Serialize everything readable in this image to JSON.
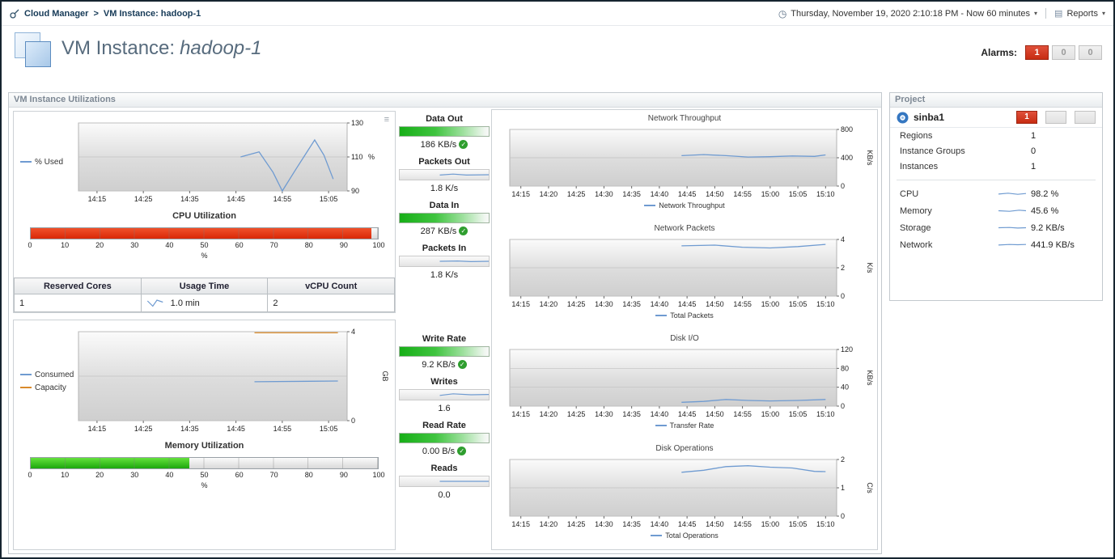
{
  "topbar": {
    "breadcrumb_root": "Cloud Manager",
    "breadcrumb_sep": ">",
    "breadcrumb_current": "VM Instance: hadoop-1",
    "time_label": "Thursday, November 19, 2020 2:10:18 PM - Now 60 minutes",
    "reports_label": "Reports"
  },
  "icons": {
    "clock": "◷",
    "caret": "▾",
    "reports": "▤",
    "menu": "≡",
    "check": "✓"
  },
  "header": {
    "title_prefix": "VM Instance:",
    "instance_name": "hadoop-1",
    "alarms_label": "Alarms:",
    "alarms": [
      "1",
      "0",
      "0"
    ]
  },
  "main_panel": {
    "title": "VM Instance Utilizations"
  },
  "cpu_gauge": {
    "percent": 98.2,
    "unit": "%",
    "ticks": [
      "0",
      "10",
      "20",
      "30",
      "40",
      "50",
      "60",
      "70",
      "80",
      "90",
      "100"
    ]
  },
  "memory_gauge": {
    "percent": 45.6,
    "unit": "%",
    "ticks": [
      "0",
      "10",
      "20",
      "30",
      "40",
      "50",
      "60",
      "70",
      "80",
      "90",
      "100"
    ]
  },
  "cpu_table": {
    "headers": [
      "Reserved Cores",
      "Usage Time",
      "vCPU Count"
    ],
    "row": [
      "1",
      "1.0 min",
      "2"
    ],
    "spark": [
      [
        0.05,
        0.2
      ],
      [
        0.3,
        0.85
      ],
      [
        0.5,
        0.1
      ],
      [
        0.78,
        0.35
      ]
    ]
  },
  "metrics": [
    {
      "label": "Data Out",
      "value": "186 KB/s",
      "type": "gauge"
    },
    {
      "label": "Packets Out",
      "value": "1.8 K/s",
      "type": "spark",
      "spark": [
        [
          0.45,
          0.55
        ],
        [
          0.6,
          0.4
        ],
        [
          0.75,
          0.55
        ],
        [
          1,
          0.5
        ]
      ]
    },
    {
      "label": "Data In",
      "value": "287 KB/s",
      "type": "gauge"
    },
    {
      "label": "Packets In",
      "value": "1.8 K/s",
      "type": "spark",
      "spark": [
        [
          0.45,
          0.5
        ],
        [
          0.65,
          0.45
        ],
        [
          0.8,
          0.55
        ],
        [
          1,
          0.5
        ]
      ]
    },
    {
      "label": "Write Rate",
      "value": "9.2 KB/s",
      "type": "gauge"
    },
    {
      "label": "Writes",
      "value": "1.6",
      "type": "spark",
      "spark": [
        [
          0.45,
          0.6
        ],
        [
          0.6,
          0.35
        ],
        [
          0.8,
          0.5
        ],
        [
          1,
          0.45
        ]
      ]
    },
    {
      "label": "Read Rate",
      "value": "0.00 B/s",
      "type": "gauge"
    },
    {
      "label": "Reads",
      "value": "0.0",
      "type": "spark",
      "spark": [
        [
          0.45,
          0.5
        ],
        [
          1,
          0.5
        ]
      ]
    }
  ],
  "project_panel": {
    "title": "Project",
    "name": "sinba1",
    "badges": [
      "1",
      "",
      ""
    ],
    "stats": [
      {
        "label": "Regions",
        "value": "1"
      },
      {
        "label": "Instance Groups",
        "value": "0"
      },
      {
        "label": "Instances",
        "value": "1"
      }
    ],
    "metrics": [
      {
        "label": "CPU",
        "value": "98.2 %",
        "spark": [
          [
            0,
            0.55
          ],
          [
            0.35,
            0.4
          ],
          [
            0.7,
            0.6
          ],
          [
            1,
            0.45
          ]
        ]
      },
      {
        "label": "Memory",
        "value": "45.6 %",
        "spark": [
          [
            0,
            0.5
          ],
          [
            0.4,
            0.6
          ],
          [
            0.75,
            0.4
          ],
          [
            1,
            0.5
          ]
        ]
      },
      {
        "label": "Storage",
        "value": "9.2 KB/s",
        "spark": [
          [
            0,
            0.5
          ],
          [
            0.4,
            0.45
          ],
          [
            0.7,
            0.55
          ],
          [
            1,
            0.5
          ]
        ]
      },
      {
        "label": "Network",
        "value": "441.9 KB/s",
        "spark": [
          [
            0,
            0.55
          ],
          [
            0.4,
            0.45
          ],
          [
            0.7,
            0.5
          ],
          [
            1,
            0.45
          ]
        ]
      }
    ]
  },
  "chart_data": [
    {
      "id": "cpu",
      "type": "line",
      "title": "CPU Utilization",
      "ylabel": "%",
      "unit_rotate": false,
      "x_range": [
        "14:11",
        "15:09"
      ],
      "x_ticks": [
        "14:15",
        "14:25",
        "14:35",
        "14:45",
        "14:55",
        "15:05"
      ],
      "ylim": [
        90,
        130
      ],
      "y_ticks": [
        90,
        110,
        130
      ],
      "series": [
        {
          "name": "% Used",
          "color": "#6f9bd1",
          "points": [
            [
              "14:46",
              110
            ],
            [
              "14:50",
              113
            ],
            [
              "14:53",
              101
            ],
            [
              "14:55",
              90
            ],
            [
              "14:58",
              103
            ],
            [
              "15:02",
              120
            ],
            [
              "15:04",
              111
            ],
            [
              "15:06",
              97
            ]
          ]
        }
      ]
    },
    {
      "id": "memory",
      "type": "line",
      "title": "Memory Utilization",
      "ylabel": "GB",
      "unit_rotate": true,
      "x_range": [
        "14:11",
        "15:09"
      ],
      "x_ticks": [
        "14:15",
        "14:25",
        "14:35",
        "14:45",
        "14:55",
        "15:05"
      ],
      "ylim": [
        0,
        4
      ],
      "y_ticks": [
        0,
        4
      ],
      "y_grid": [
        0,
        2,
        4
      ],
      "series": [
        {
          "name": "Consumed",
          "color": "#6f9bd1",
          "points": [
            [
              "14:49",
              1.75
            ],
            [
              "15:07",
              1.78
            ]
          ]
        },
        {
          "name": "Capacity",
          "color": "#d98a2b",
          "points": [
            [
              "14:49",
              3.95
            ],
            [
              "15:07",
              3.95
            ]
          ]
        }
      ]
    },
    {
      "id": "net_throughput",
      "type": "line",
      "title": "Network Throughput",
      "ylabel": "KB/s",
      "unit_rotate": true,
      "x_range": [
        "14:13",
        "15:12"
      ],
      "x_ticks": [
        "14:15",
        "14:20",
        "14:25",
        "14:30",
        "14:35",
        "14:40",
        "14:45",
        "14:50",
        "14:55",
        "15:00",
        "15:05",
        "15:10"
      ],
      "ylim": [
        0,
        800
      ],
      "y_ticks": [
        0,
        400,
        800
      ],
      "series": [
        {
          "name": "Network Throughput",
          "color": "#6f9bd1",
          "points": [
            [
              "14:44",
              430
            ],
            [
              "14:48",
              445
            ],
            [
              "14:52",
              430
            ],
            [
              "14:56",
              410
            ],
            [
              "15:00",
              415
            ],
            [
              "15:04",
              425
            ],
            [
              "15:08",
              420
            ],
            [
              "15:10",
              440
            ]
          ]
        }
      ]
    },
    {
      "id": "net_packets",
      "type": "line",
      "title": "Network Packets",
      "ylabel": "K/s",
      "unit_rotate": true,
      "x_range": [
        "14:13",
        "15:12"
      ],
      "x_ticks": [
        "14:15",
        "14:20",
        "14:25",
        "14:30",
        "14:35",
        "14:40",
        "14:45",
        "14:50",
        "14:55",
        "15:00",
        "15:05",
        "15:10"
      ],
      "ylim": [
        0,
        4
      ],
      "y_ticks": [
        0,
        2,
        4
      ],
      "series": [
        {
          "name": "Total Packets",
          "color": "#6f9bd1",
          "points": [
            [
              "14:44",
              3.55
            ],
            [
              "14:50",
              3.6
            ],
            [
              "14:55",
              3.45
            ],
            [
              "15:00",
              3.4
            ],
            [
              "15:05",
              3.5
            ],
            [
              "15:10",
              3.65
            ]
          ]
        }
      ]
    },
    {
      "id": "disk_io",
      "type": "line",
      "title": "Disk I/O",
      "ylabel": "KB/s",
      "unit_rotate": true,
      "x_range": [
        "14:13",
        "15:12"
      ],
      "x_ticks": [
        "14:15",
        "14:20",
        "14:25",
        "14:30",
        "14:35",
        "14:40",
        "14:45",
        "14:50",
        "14:55",
        "15:00",
        "15:05",
        "15:10"
      ],
      "ylim": [
        0,
        120
      ],
      "y_ticks": [
        0,
        40,
        80,
        120
      ],
      "series": [
        {
          "name": "Transfer Rate",
          "color": "#6f9bd1",
          "points": [
            [
              "14:44",
              8
            ],
            [
              "14:48",
              10
            ],
            [
              "14:52",
              14
            ],
            [
              "14:56",
              12
            ],
            [
              "15:00",
              11
            ],
            [
              "15:05",
              12
            ],
            [
              "15:10",
              14
            ]
          ]
        }
      ]
    },
    {
      "id": "disk_ops",
      "type": "line",
      "title": "Disk Operations",
      "ylabel": "C/s",
      "unit_rotate": true,
      "x_range": [
        "14:13",
        "15:12"
      ],
      "x_ticks": [
        "14:15",
        "14:20",
        "14:25",
        "14:30",
        "14:35",
        "14:40",
        "14:45",
        "14:50",
        "14:55",
        "15:00",
        "15:05",
        "15:10"
      ],
      "ylim": [
        0,
        2
      ],
      "y_ticks": [
        0,
        1,
        2
      ],
      "series": [
        {
          "name": "Total Operations",
          "color": "#6f9bd1",
          "points": [
            [
              "14:44",
              1.55
            ],
            [
              "14:48",
              1.62
            ],
            [
              "14:52",
              1.75
            ],
            [
              "14:56",
              1.78
            ],
            [
              "15:00",
              1.73
            ],
            [
              "15:04",
              1.7
            ],
            [
              "15:08",
              1.58
            ],
            [
              "15:10",
              1.57
            ]
          ]
        }
      ]
    }
  ]
}
